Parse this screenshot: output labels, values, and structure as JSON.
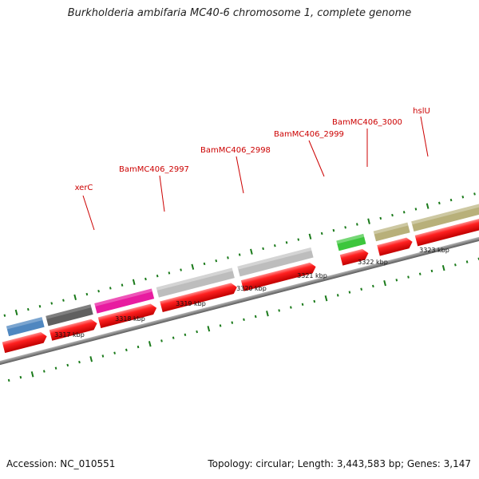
{
  "header": {
    "title": "Burkholderia ambifaria MC40-6 chromosome 1, complete genome"
  },
  "footer": {
    "accession": "Accession: NC_010551",
    "summary": "Topology: circular; Length: 3,443,583 bp; Genes: 3,147"
  },
  "colors": {
    "cds_arrow": "#ee1111",
    "backbone": "#808080",
    "label_text": "#cc0000",
    "tick": "#1a7a1a",
    "gene_blue": "#4f87c0",
    "gene_darkgray": "#606060",
    "gene_magenta": "#e81ca0",
    "gene_lightgray": "#bdbdbd",
    "gene_green": "#3cc63c",
    "gene_khaki": "#b8b07a"
  },
  "gene_labels": [
    {
      "id": "xerC",
      "text": "xerC"
    },
    {
      "id": "bam2997",
      "text": "BamMC406_2997"
    },
    {
      "id": "bam2998",
      "text": "BamMC406_2998"
    },
    {
      "id": "bam2999",
      "text": "BamMC406_2999"
    },
    {
      "id": "bam3000",
      "text": "BamMC406_3000"
    },
    {
      "id": "hslU",
      "text": "hslU"
    }
  ],
  "scale_labels": [
    {
      "id": "kbp3317",
      "text": "3317 kbp"
    },
    {
      "id": "kbp3318",
      "text": "3318 kbp"
    },
    {
      "id": "kbp3319",
      "text": "3319 kbp"
    },
    {
      "id": "kbp3320",
      "text": "3320 kbp"
    },
    {
      "id": "kbp3321",
      "text": "3321 kbp"
    },
    {
      "id": "kbp3322",
      "text": "3322 kbp"
    },
    {
      "id": "kbp3323",
      "text": "3323 kbp"
    }
  ]
}
